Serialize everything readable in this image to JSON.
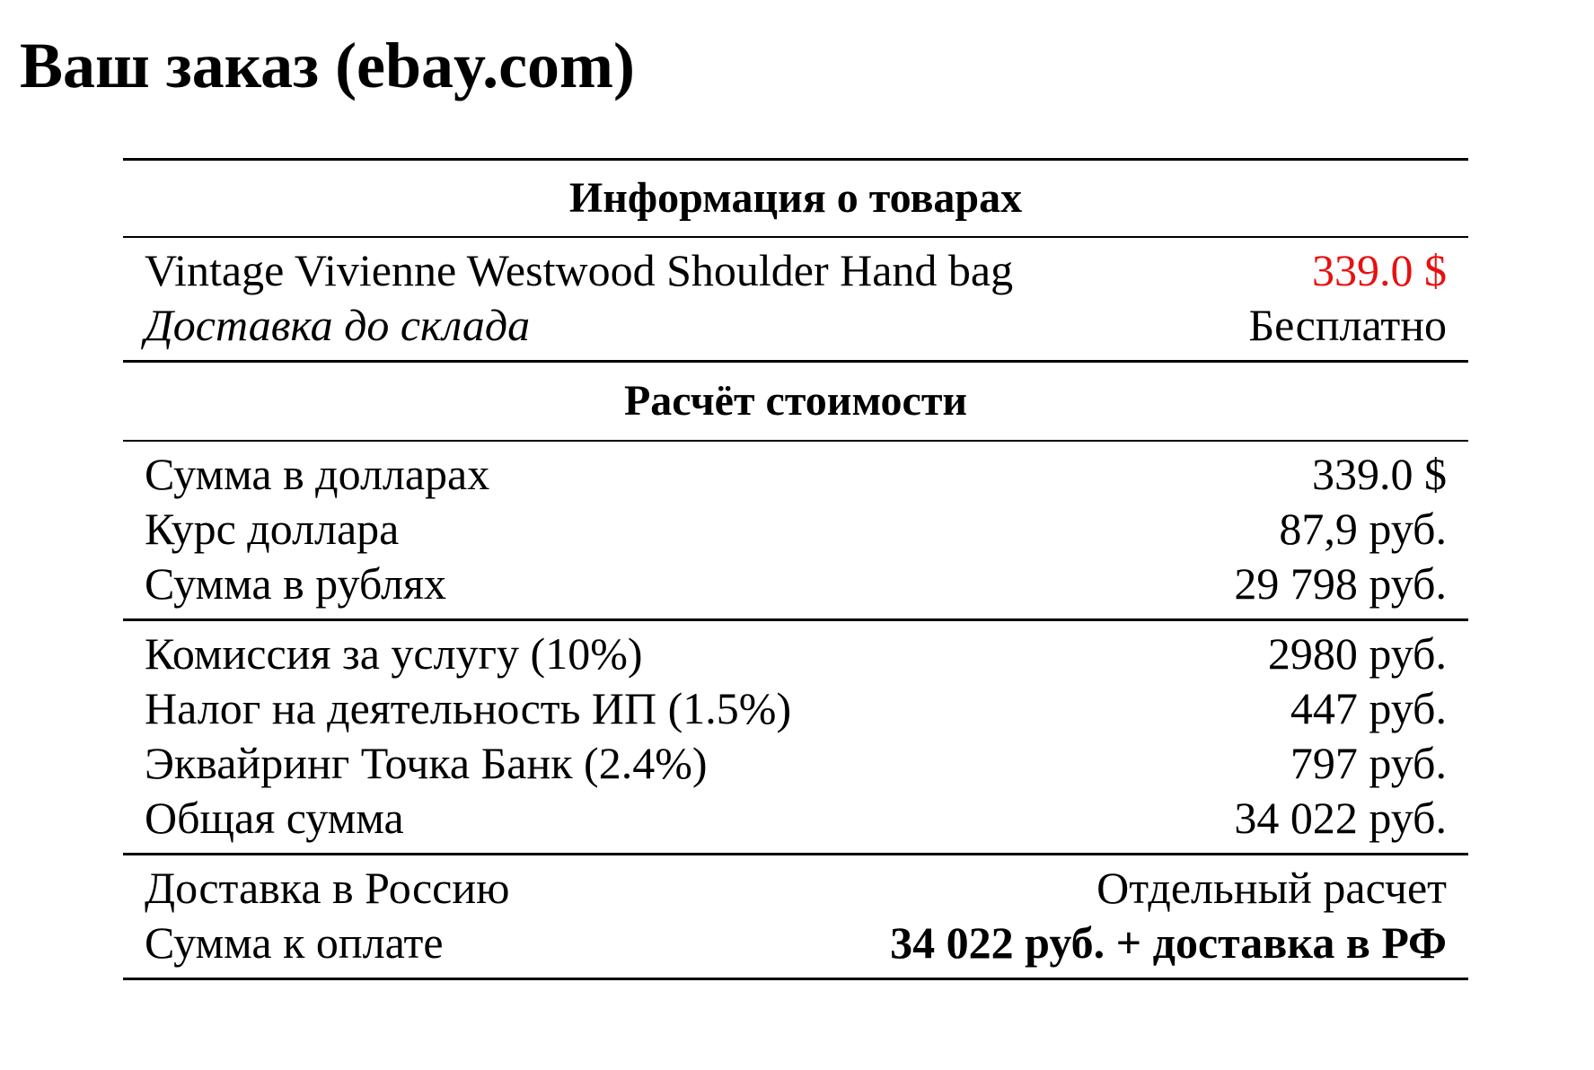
{
  "header": {
    "title": "Ваш заказ (ebay.com)"
  },
  "table": {
    "sections": [
      {
        "heading": "Информация о товарах",
        "groups": [
          {
            "rows": [
              {
                "label": "Vintage Vivienne Westwood Shoulder Hand bag",
                "value": "339.0 $"
              },
              {
                "label": "Доставка до склада",
                "value": "Бесплатно"
              }
            ]
          }
        ]
      },
      {
        "heading": "Расчёт стоимости",
        "groups": [
          {
            "rows": [
              {
                "label": "Сумма в долларах",
                "value": "339.0 $"
              },
              {
                "label": "Курс доллара",
                "value": "87,9 руб."
              },
              {
                "label": "Сумма в рублях",
                "value": "29 798 руб."
              }
            ]
          },
          {
            "rows": [
              {
                "label": "Комиссия за услугу (10%)",
                "value": "2980 руб."
              },
              {
                "label": "Налог на деятельность ИП (1.5%)",
                "value": "447 руб."
              },
              {
                "label": "Эквайринг Точка Банк (2.4%)",
                "value": "797 руб."
              },
              {
                "label": "Общая сумма",
                "value": "34 022 руб."
              }
            ]
          },
          {
            "rows": [
              {
                "label": "Доставка в Россию",
                "value": "Отдельный расчет"
              },
              {
                "label": "Сумма к оплате",
                "value": "34 022 руб. + доставка в РФ"
              }
            ]
          }
        ]
      }
    ]
  }
}
